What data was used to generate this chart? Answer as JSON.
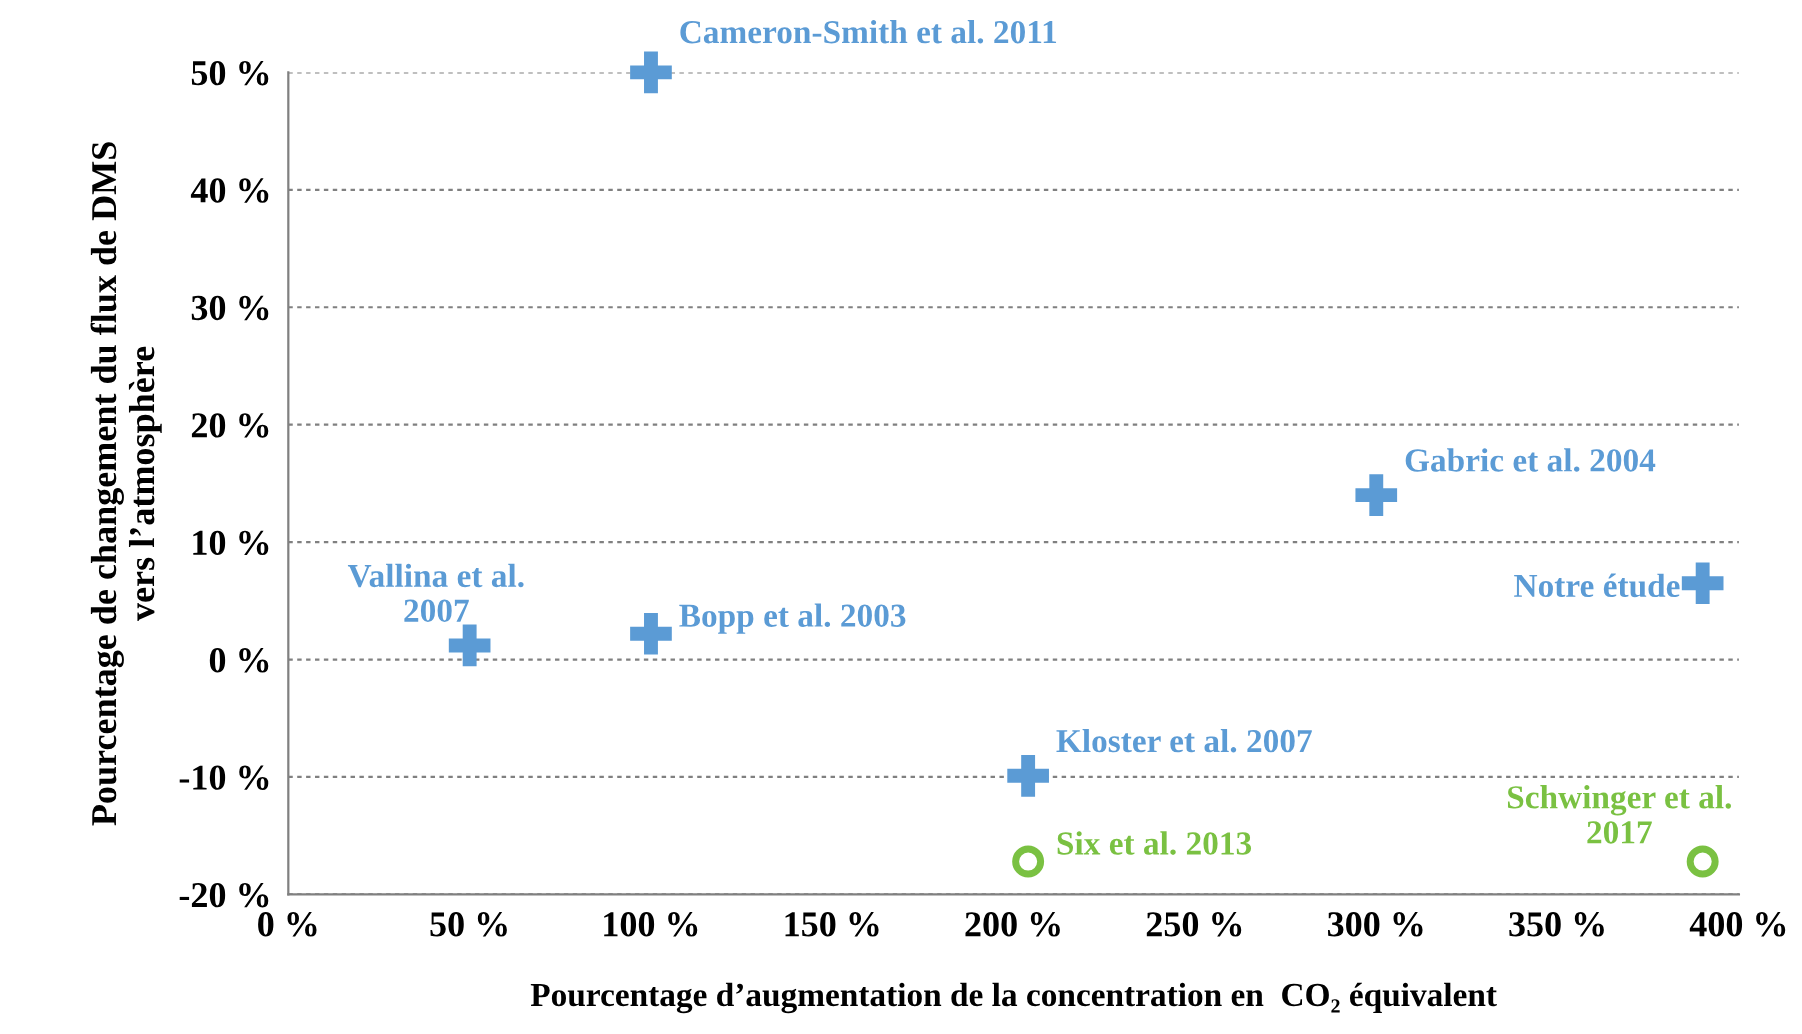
{
  "chart_data": {
    "type": "scatter",
    "xlabel": "Pourcentage d’augmentation de la concentration en  CO₂ équivalent",
    "ylabel": "Pourcentage de changement du flux de DMS\nvers l’atmosphère",
    "series": [
      {
        "color": "#5b9bd5",
        "marker": "cross",
        "x": [
          100,
          50,
          100,
          300,
          390,
          204
        ],
        "values": [
          50,
          1.2,
          2.2,
          14,
          6.5,
          -9.9
        ]
      },
      {
        "color": "#7ac142",
        "marker": "circle",
        "x": [
          204,
          390
        ],
        "values": [
          -17.2,
          -17.2
        ]
      }
    ],
    "annotations": [
      {
        "text": "Cameron-Smith et al. 2011",
        "x": 100,
        "y": 50
      },
      {
        "text": "Vallina et al.\n2007",
        "x": 50,
        "y": 1.2
      },
      {
        "text": "Bopp et al. 2003",
        "x": 100,
        "y": 2.2
      },
      {
        "text": "Gabric et al. 2004",
        "x": 300,
        "y": 14
      },
      {
        "text": "Notre étude",
        "x": 390,
        "y": 6.5
      },
      {
        "text": "Kloster et al. 2007",
        "x": 204,
        "y": -9.9
      },
      {
        "text": "Six et al. 2013",
        "x": 204,
        "y": -17.2
      },
      {
        "text": "Schwinger et al.\n2017",
        "x": 390,
        "y": -17.2
      }
    ],
    "xlim": [
      0,
      400
    ],
    "ylim": [
      -20,
      50
    ],
    "xticks": [
      {
        "value": 0,
        "label": "0 %"
      },
      {
        "value": 50,
        "label": "50 %"
      },
      {
        "value": 100,
        "label": "100 %"
      },
      {
        "value": 150,
        "label": "150 %"
      },
      {
        "value": 200,
        "label": "200 %"
      },
      {
        "value": 250,
        "label": "250 %"
      },
      {
        "value": 300,
        "label": "300 %"
      },
      {
        "value": 350,
        "label": "350 %"
      },
      {
        "value": 400,
        "label": "400 %"
      }
    ],
    "yticks": [
      {
        "value": -20,
        "label": "-20 %"
      },
      {
        "value": -10,
        "label": "-10 %"
      },
      {
        "value": 0,
        "label": "0 %"
      },
      {
        "value": 10,
        "label": "10 %"
      },
      {
        "value": 20,
        "label": "20 %"
      },
      {
        "value": 30,
        "label": "30 %"
      },
      {
        "value": 40,
        "label": "40 %"
      },
      {
        "value": 50,
        "label": "50 %"
      }
    ],
    "grid": "y"
  }
}
